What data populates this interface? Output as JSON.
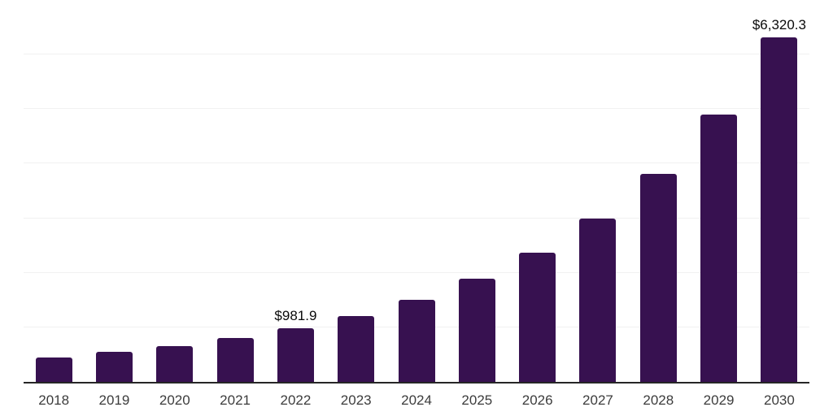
{
  "chart_data": {
    "type": "bar",
    "title": "",
    "xlabel": "",
    "ylabel": "",
    "categories": [
      "2018",
      "2019",
      "2020",
      "2021",
      "2022",
      "2023",
      "2024",
      "2025",
      "2026",
      "2027",
      "2028",
      "2029",
      "2030"
    ],
    "values": [
      447,
      547,
      660,
      805,
      981.9,
      1212,
      1505,
      1888,
      2375,
      2991,
      3820,
      4903,
      6320.3
    ],
    "labels": [
      null,
      null,
      null,
      null,
      "$981.9",
      null,
      null,
      null,
      null,
      null,
      null,
      null,
      "$6,320.3"
    ],
    "labeled_points": {
      "2022": "$981.9",
      "2030": "$6,320.3"
    },
    "ylim": [
      0,
      7000
    ],
    "gridline_step": 1000,
    "grid": true,
    "legend": "none",
    "bar_color": "#371150",
    "gridline_color": "#f1f1f1",
    "axis_color": "#262626",
    "tick_color": "#3c3c3c",
    "data_label_color": "#0a0a0a"
  }
}
